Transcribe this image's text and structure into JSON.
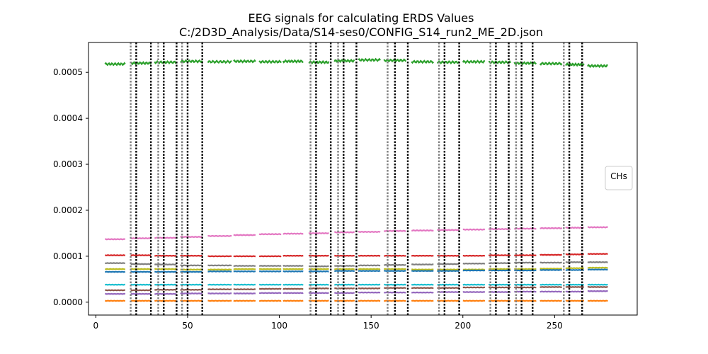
{
  "chart_data": {
    "type": "line",
    "title": "EEG signals for calculating ERDS Values",
    "subtitle": "C:/2D3D_Analysis/Data/S14-ses0/CONFIG_S14_run2_ME_2D.json",
    "xlabel": "",
    "ylabel": "",
    "xlim": [
      -4,
      295
    ],
    "ylim": [
      -2.8e-05,
      0.000565
    ],
    "xticks": [
      0,
      50,
      100,
      150,
      200,
      250
    ],
    "xtick_labels": [
      "0",
      "50",
      "100",
      "150",
      "200",
      "250"
    ],
    "yticks": [
      0.0,
      0.0001,
      0.0002,
      0.0003,
      0.0004,
      0.0005
    ],
    "ytick_labels": [
      "0.0000",
      "0.0001",
      "0.0002",
      "0.0003",
      "0.0004",
      "0.0005"
    ],
    "legend": {
      "title": "CHs",
      "placement": "center-right"
    },
    "grid": false,
    "segments": [
      [
        5,
        16
      ],
      [
        19,
        30
      ],
      [
        32,
        44
      ],
      [
        46,
        58
      ],
      [
        61,
        74
      ],
      [
        75,
        87
      ],
      [
        89,
        101
      ],
      [
        102,
        113
      ],
      [
        116,
        127
      ],
      [
        130,
        141
      ],
      [
        143,
        155
      ],
      [
        157,
        169
      ],
      [
        172,
        184
      ],
      [
        186,
        198
      ],
      [
        200,
        212
      ],
      [
        214,
        226
      ],
      [
        228,
        240
      ],
      [
        242,
        254
      ],
      [
        256,
        266
      ],
      [
        268,
        279
      ]
    ],
    "series": [
      {
        "color": "#2ca02c",
        "values": [
          0.000518,
          0.00052,
          0.000522,
          0.000524,
          0.000523,
          0.000524,
          0.000523,
          0.000524,
          0.000522,
          0.000525,
          0.000527,
          0.000526,
          0.000523,
          0.000522,
          0.000523,
          0.000522,
          0.00052,
          0.000519,
          0.000517,
          0.000514
        ]
      },
      {
        "color": "#e377c2",
        "values": [
          0.000137,
          0.000139,
          0.00014,
          0.000142,
          0.000144,
          0.000146,
          0.000148,
          0.000149,
          0.00015,
          0.000152,
          0.000153,
          0.000155,
          0.000156,
          0.000157,
          0.000158,
          0.000159,
          0.00016,
          0.000161,
          0.000162,
          0.000163
        ]
      },
      {
        "color": "#d62728",
        "values": [
          0.000102,
          0.000102,
          0.000101,
          0.000101,
          0.0001,
          0.0001,
          0.0001,
          0.000101,
          0.000101,
          0.000101,
          0.000101,
          0.000101,
          0.000101,
          0.000101,
          0.000101,
          0.000102,
          0.000102,
          0.000103,
          0.000104,
          0.000105
        ]
      },
      {
        "color": "#7f7f7f",
        "values": [
          8.5e-05,
          8.3e-05,
          8.2e-05,
          8e-05,
          8e-05,
          7.9e-05,
          7.9e-05,
          7.9e-05,
          7.8e-05,
          7.9e-05,
          8e-05,
          8.1e-05,
          8.2e-05,
          8.3e-05,
          8.4e-05,
          8.5e-05,
          8.6e-05,
          8.6e-05,
          8.7e-05,
          8.7e-05
        ]
      },
      {
        "color": "#bcbd22",
        "values": [
          7.2e-05,
          7.2e-05,
          7.2e-05,
          7.1e-05,
          7.1e-05,
          7.2e-05,
          7.2e-05,
          7.2e-05,
          7.2e-05,
          7.2e-05,
          7.2e-05,
          7.2e-05,
          7.1e-05,
          7.1e-05,
          7.1e-05,
          7.2e-05,
          7.2e-05,
          7.3e-05,
          7.4e-05,
          7.5e-05
        ]
      },
      {
        "color": "#1f77b4",
        "values": [
          6.6e-05,
          6.6e-05,
          6.6e-05,
          6.6e-05,
          6.7e-05,
          6.7e-05,
          6.7e-05,
          6.7e-05,
          6.7e-05,
          6.8e-05,
          6.8e-05,
          6.8e-05,
          6.8e-05,
          6.8e-05,
          6.9e-05,
          6.9e-05,
          6.9e-05,
          7e-05,
          7e-05,
          7.1e-05
        ]
      },
      {
        "color": "#17becf",
        "values": [
          3.8e-05,
          3.8e-05,
          3.8e-05,
          3.8e-05,
          3.8e-05,
          3.8e-05,
          3.8e-05,
          3.8e-05,
          3.8e-05,
          3.8e-05,
          3.8e-05,
          3.8e-05,
          3.8e-05,
          3.8e-05,
          3.8e-05,
          3.8e-05,
          3.8e-05,
          3.8e-05,
          3.8e-05,
          3.8e-05
        ]
      },
      {
        "color": "#8c564b",
        "values": [
          2.6e-05,
          2.6e-05,
          2.7e-05,
          2.7e-05,
          2.8e-05,
          2.8e-05,
          2.9e-05,
          2.9e-05,
          3e-05,
          3e-05,
          3e-05,
          3.1e-05,
          3.1e-05,
          3.1e-05,
          3.2e-05,
          3.2e-05,
          3.2e-05,
          3.3e-05,
          3.3e-05,
          3.3e-05
        ]
      },
      {
        "color": "#9467bd",
        "values": [
          1.8e-05,
          1.8e-05,
          1.8e-05,
          1.9e-05,
          1.9e-05,
          1.9e-05,
          2e-05,
          2e-05,
          2e-05,
          2e-05,
          2.1e-05,
          2.1e-05,
          2.1e-05,
          2.2e-05,
          2.2e-05,
          2.2e-05,
          2.3e-05,
          2.3e-05,
          2.3e-05,
          2.4e-05
        ]
      },
      {
        "color": "#ff7f0e",
        "values": [
          3e-06,
          3e-06,
          3e-06,
          3e-06,
          3e-06,
          3e-06,
          3e-06,
          3e-06,
          3e-06,
          3e-06,
          3e-06,
          3e-06,
          3e-06,
          3e-06,
          3e-06,
          3e-06,
          3e-06,
          3e-06,
          3e-06,
          3e-06
        ]
      }
    ],
    "event_markers": [
      {
        "x": 19,
        "color": "#808080"
      },
      {
        "x": 22,
        "color": "#000000"
      },
      {
        "x": 30,
        "color": "#000000"
      },
      {
        "x": 34,
        "color": "#808080"
      },
      {
        "x": 37,
        "color": "#000000"
      },
      {
        "x": 44,
        "color": "#000000"
      },
      {
        "x": 47,
        "color": "#808080"
      },
      {
        "x": 50,
        "color": "#000000"
      },
      {
        "x": 58,
        "color": "#000000"
      },
      {
        "x": 117,
        "color": "#808080"
      },
      {
        "x": 120,
        "color": "#000000"
      },
      {
        "x": 128,
        "color": "#000000"
      },
      {
        "x": 132,
        "color": "#808080"
      },
      {
        "x": 135,
        "color": "#000000"
      },
      {
        "x": 142,
        "color": "#000000"
      },
      {
        "x": 159,
        "color": "#808080"
      },
      {
        "x": 163,
        "color": "#000000"
      },
      {
        "x": 170,
        "color": "#000000"
      },
      {
        "x": 187,
        "color": "#808080"
      },
      {
        "x": 190,
        "color": "#000000"
      },
      {
        "x": 198,
        "color": "#000000"
      },
      {
        "x": 215,
        "color": "#808080"
      },
      {
        "x": 218,
        "color": "#000000"
      },
      {
        "x": 225,
        "color": "#000000"
      },
      {
        "x": 229,
        "color": "#808080"
      },
      {
        "x": 232,
        "color": "#000000"
      },
      {
        "x": 238,
        "color": "#000000"
      },
      {
        "x": 255,
        "color": "#808080"
      },
      {
        "x": 258,
        "color": "#000000"
      },
      {
        "x": 265,
        "color": "#000000"
      }
    ]
  }
}
